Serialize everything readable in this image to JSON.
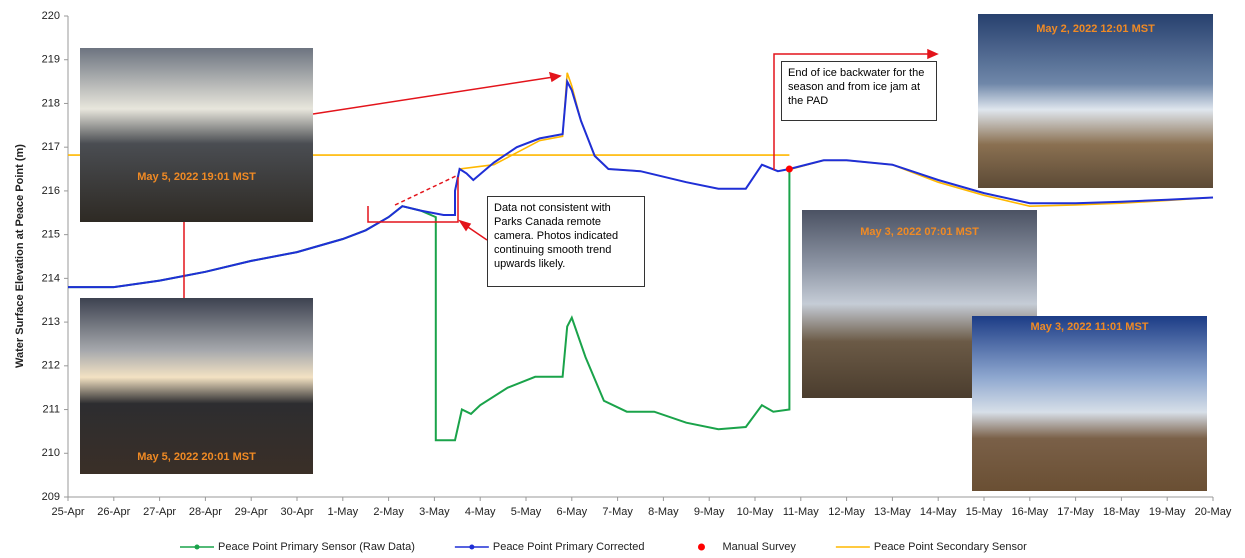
{
  "chart_data": {
    "type": "line",
    "y_label": "Water Surface Elevation at Peace Point (m)",
    "xlim": [
      0,
      25
    ],
    "xticks": [
      {
        "value": 0,
        "label": "25-Apr"
      },
      {
        "value": 1,
        "label": "26-Apr"
      },
      {
        "value": 2,
        "label": "27-Apr"
      },
      {
        "value": 3,
        "label": "28-Apr"
      },
      {
        "value": 4,
        "label": "29-Apr"
      },
      {
        "value": 5,
        "label": "30-Apr"
      },
      {
        "value": 6,
        "label": "1-May"
      },
      {
        "value": 7,
        "label": "2-May"
      },
      {
        "value": 8,
        "label": "3-May"
      },
      {
        "value": 9,
        "label": "4-May"
      },
      {
        "value": 10,
        "label": "5-May"
      },
      {
        "value": 11,
        "label": "6-May"
      },
      {
        "value": 12,
        "label": "7-May"
      },
      {
        "value": 13,
        "label": "8-May"
      },
      {
        "value": 14,
        "label": "9-May"
      },
      {
        "value": 15,
        "label": "10-May"
      },
      {
        "value": 16,
        "label": "11-May"
      },
      {
        "value": 17,
        "label": "12-May"
      },
      {
        "value": 18,
        "label": "13-May"
      },
      {
        "value": 19,
        "label": "14-May"
      },
      {
        "value": 20,
        "label": "15-May"
      },
      {
        "value": 21,
        "label": "16-May"
      },
      {
        "value": 22,
        "label": "17-May"
      },
      {
        "value": 23,
        "label": "18-May"
      },
      {
        "value": 24,
        "label": "19-May"
      },
      {
        "value": 25,
        "label": "20-May"
      }
    ],
    "ylim": [
      209,
      220
    ],
    "yticks": [
      209,
      210,
      211,
      212,
      213,
      214,
      215,
      216,
      217,
      218,
      219,
      220
    ],
    "legend": "bottom",
    "series": [
      {
        "name": "Peace Point Primary Sensor (Raw Data)",
        "color": "#1aa34a",
        "marker": "diamond",
        "x": [
          0,
          1,
          2,
          3,
          4,
          5,
          6,
          6.5,
          7,
          7.3,
          7.7,
          8.03,
          8.03,
          8.3,
          8.45,
          8.6,
          8.8,
          9.0,
          9.6,
          10.2,
          10.8,
          10.9,
          11.0,
          11.3,
          11.7,
          12.2,
          12.8,
          13.5,
          14.2,
          14.8,
          15.15,
          15.4,
          15.75,
          15.75
        ],
        "values": [
          213.8,
          213.8,
          213.95,
          214.15,
          214.4,
          214.6,
          214.9,
          215.1,
          215.4,
          215.65,
          215.55,
          215.4,
          210.3,
          210.3,
          210.3,
          211.0,
          210.9,
          211.1,
          211.5,
          211.75,
          211.75,
          212.9,
          213.1,
          212.2,
          211.2,
          210.95,
          210.95,
          210.7,
          210.55,
          210.6,
          211.1,
          210.95,
          211.0,
          216.5
        ]
      },
      {
        "name": "Peace Point Primary Corrected",
        "color": "#1f2fd6",
        "marker": "circle",
        "x": [
          0,
          1,
          2,
          3,
          4,
          5,
          6,
          6.5,
          7,
          7.3,
          7.7,
          8.2,
          8.45,
          8.45,
          8.55,
          8.7,
          8.85,
          9.3,
          9.8,
          10.3,
          10.8,
          10.9,
          11.0,
          11.2,
          11.5,
          11.8,
          12.5,
          13.5,
          14.2,
          14.8,
          15.15,
          15.5,
          15.75,
          16.5,
          17,
          18,
          19,
          20,
          21,
          22,
          23,
          24,
          25
        ],
        "values": [
          213.8,
          213.8,
          213.95,
          214.15,
          214.4,
          214.6,
          214.9,
          215.1,
          215.4,
          215.65,
          215.55,
          215.45,
          215.45,
          216.0,
          216.5,
          216.4,
          216.25,
          216.65,
          217.0,
          217.2,
          217.3,
          218.5,
          218.3,
          217.6,
          216.8,
          216.5,
          216.45,
          216.2,
          216.05,
          216.05,
          216.6,
          216.45,
          216.5,
          216.7,
          216.7,
          216.6,
          216.25,
          215.95,
          215.72,
          215.72,
          215.75,
          215.8,
          215.85
        ]
      },
      {
        "name": "Manual Survey",
        "color": "#ff0000",
        "marker": "dot",
        "x": [
          15.75
        ],
        "values": [
          216.5
        ]
      },
      {
        "name": "Peace Point Secondary Sensor",
        "color": "#ffb800",
        "marker": "none",
        "x": [
          0,
          15.75,
          null,
          8.45,
          8.55,
          9.3,
          10.3,
          10.8,
          10.9,
          11.0,
          11.2,
          11.5,
          11.8,
          12.5,
          null,
          15.8,
          16.5,
          17,
          18,
          19,
          20,
          21,
          22,
          23,
          24,
          25
        ],
        "values": [
          216.82,
          216.82,
          null,
          216.0,
          216.5,
          216.6,
          217.15,
          217.25,
          218.7,
          218.4,
          217.6,
          216.8,
          216.5,
          216.45,
          null,
          216.5,
          216.7,
          216.7,
          216.6,
          216.2,
          215.9,
          215.65,
          215.68,
          215.72,
          215.78,
          215.85
        ]
      }
    ],
    "annotations": [
      "Data not consistent with Parks Canada remote camera. Photos indicated continuing smooth trend upwards likely.",
      "End of ice backwater for the season and from ice jam at the PAD"
    ],
    "photos": [
      "May 5, 2022 19:01 MST",
      "May 5, 2022 20:01 MST",
      "May 2, 2022 12:01 MST",
      "May 3, 2022 07:01 MST",
      "May 3, 2022 11:01 MST"
    ]
  }
}
